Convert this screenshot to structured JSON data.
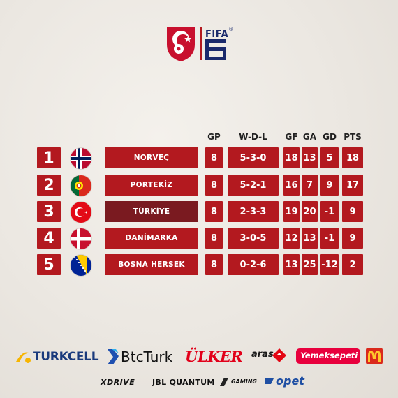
{
  "header": {
    "fifa_label": "FIFA",
    "fifa_mark": "®",
    "tff_logo": "tff-crest-icon"
  },
  "columns": {
    "gp": "GP",
    "wdl": "W-D-L",
    "gf": "GF",
    "ga": "GA",
    "gd": "GD",
    "pts": "PTS"
  },
  "standings": [
    {
      "rank": "1",
      "team": "NORVEÇ",
      "flag": "norway-flag-icon",
      "gp": "8",
      "wdl": "5-3-0",
      "gf": "18",
      "ga": "13",
      "gd": "5",
      "pts": "18"
    },
    {
      "rank": "2",
      "team": "PORTEKİZ",
      "flag": "portugal-flag-icon",
      "gp": "8",
      "wdl": "5-2-1",
      "gf": "16",
      "ga": "7",
      "gd": "9",
      "pts": "17"
    },
    {
      "rank": "3",
      "team": "TÜRKİYE",
      "flag": "turkey-flag-icon",
      "gp": "8",
      "wdl": "2-3-3",
      "gf": "19",
      "ga": "20",
      "gd": "-1",
      "pts": "9"
    },
    {
      "rank": "4",
      "team": "DANİMARKA",
      "flag": "denmark-flag-icon",
      "gp": "8",
      "wdl": "3-0-5",
      "gf": "12",
      "ga": "13",
      "gd": "-1",
      "pts": "9"
    },
    {
      "rank": "5",
      "team": "BOSNA HERSEK",
      "flag": "bosnia-flag-icon",
      "gp": "8",
      "wdl": "0-2-6",
      "gf": "13",
      "ga": "25",
      "gd": "-12",
      "pts": "2"
    }
  ],
  "sponsors": {
    "turkcell": "TURKCELL",
    "btcturk": "BtcTurk",
    "ulker": "ÜLKER",
    "aras": "aras",
    "yemeksepeti": "Yemeksepeti",
    "xdrive": "XDRIVE",
    "jbl": "JBL QUANTUM",
    "gaming": "GAMING",
    "opet": "opet"
  },
  "colors": {
    "accent_red": "#b3191f",
    "highlight_red": "#7a1a20",
    "background": "#ebe7e1"
  }
}
